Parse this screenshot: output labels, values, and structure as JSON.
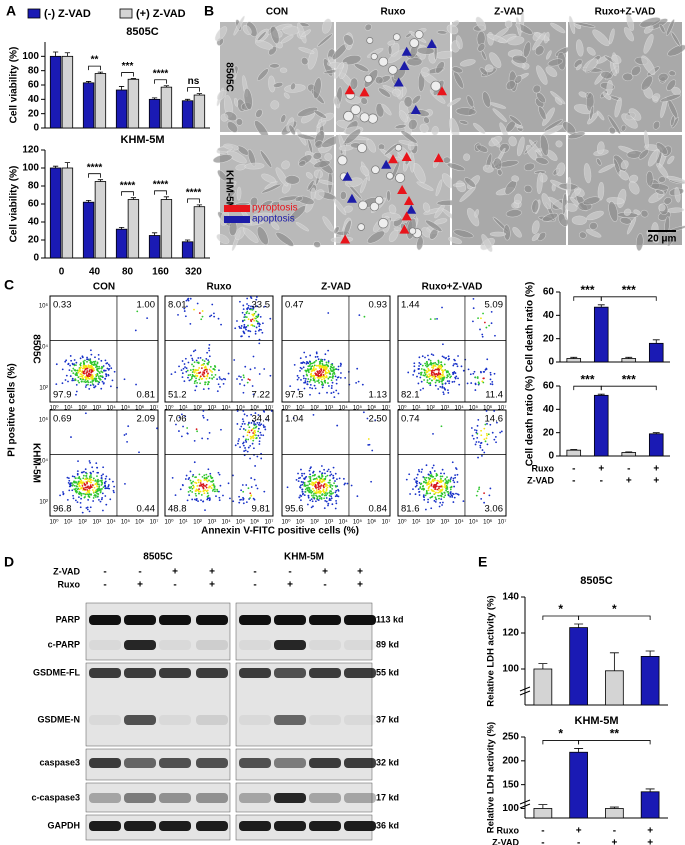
{
  "panel_labels": [
    "A",
    "B",
    "C",
    "D",
    "E"
  ],
  "chart_data": [
    {
      "type": "bar",
      "title": "8505C",
      "y_label": "Cell viability (%)",
      "categories": [
        null,
        null,
        null,
        null,
        null
      ],
      "series": [
        {
          "name": "(-) Z-VAD",
          "color": "#1a1ab4",
          "values": [
            100,
            63,
            53,
            40,
            38
          ],
          "errors": [
            6,
            2,
            5,
            2,
            2
          ]
        },
        {
          "name": "(+) Z-VAD",
          "color": "#d4d4d4",
          "values": [
            100,
            76,
            68,
            57,
            46
          ],
          "errors": [
            5,
            2,
            1,
            2,
            2
          ]
        }
      ],
      "significance": [
        null,
        "**",
        "***",
        "****",
        "ns"
      ],
      "ylim": [
        0,
        120
      ],
      "yticks": [
        0,
        20,
        40,
        60,
        80,
        100
      ],
      "legend": "top"
    },
    {
      "type": "bar",
      "title": "KHM-5M",
      "y_label": "Cell viability (%)",
      "categories": [
        "0",
        "40",
        "80",
        "160",
        "320"
      ],
      "series": [
        {
          "color": "#1a1ab4",
          "values": [
            100,
            62,
            32,
            25,
            18
          ],
          "errors": [
            2,
            2,
            2,
            3,
            2
          ]
        },
        {
          "color": "#d4d4d4",
          "values": [
            100,
            85,
            65,
            65,
            57
          ],
          "errors": [
            6,
            2,
            2,
            3,
            2
          ]
        }
      ],
      "significance": [
        null,
        "****",
        "****",
        "****",
        "****"
      ],
      "ylim": [
        0,
        120
      ],
      "yticks": [
        0,
        20,
        40,
        60,
        80,
        100,
        120
      ]
    },
    {
      "type": "bar",
      "y_label": "Cell death ratio (%)",
      "categories": [
        null,
        null,
        null,
        null
      ],
      "values": [
        3,
        47,
        3,
        16
      ],
      "errors": [
        1,
        2,
        1,
        3
      ],
      "colors": [
        "#d4d4d4",
        "#1a1ab4",
        "#d4d4d4",
        "#1a1ab4"
      ],
      "comparisons": [
        "***",
        "***"
      ],
      "ylim": [
        0,
        60
      ],
      "yticks": [
        0,
        20,
        40,
        60
      ]
    },
    {
      "type": "bar",
      "y_label": "Cell death ratio (%)",
      "categories": [
        null,
        null,
        null,
        null
      ],
      "values": [
        5,
        52,
        3,
        19
      ],
      "errors": [
        0.5,
        1,
        0.5,
        1
      ],
      "colors": [
        "#d4d4d4",
        "#1a1ab4",
        "#d4d4d4",
        "#1a1ab4"
      ],
      "comparisons": [
        "***",
        "***"
      ],
      "ylim": [
        0,
        60
      ],
      "yticks": [
        0,
        20,
        40,
        60
      ],
      "treatments": [
        {
          "label": "Ruxo",
          "signs": [
            "-",
            "+",
            "-",
            "+"
          ]
        },
        {
          "label": "Z-VAD",
          "signs": [
            "-",
            "-",
            "+",
            "+"
          ]
        }
      ]
    },
    {
      "type": "bar",
      "title": "8505C",
      "y_label": "Relative LDH activity (%)",
      "categories": [
        null,
        null,
        null,
        null
      ],
      "values": [
        100,
        123,
        99,
        107
      ],
      "errors": [
        3,
        2,
        10,
        3
      ],
      "colors": [
        "#d4d4d4",
        "#1a1ab4",
        "#d4d4d4",
        "#1a1ab4"
      ],
      "comparisons": [
        "*",
        "*"
      ],
      "ylim": [
        80,
        140
      ],
      "yticks": [
        100,
        120,
        140
      ],
      "axis_break": true
    },
    {
      "type": "bar",
      "title": "KHM-5M",
      "y_label": "Relative LDH activity (%)",
      "categories": [
        null,
        null,
        null,
        null
      ],
      "values": [
        100,
        218,
        100,
        135
      ],
      "errors": [
        8,
        8,
        3,
        6
      ],
      "colors": [
        "#d4d4d4",
        "#1a1ab4",
        "#d4d4d4",
        "#1a1ab4"
      ],
      "comparisons": [
        "*",
        "**"
      ],
      "ylim": [
        80,
        250
      ],
      "yticks": [
        100,
        150,
        200,
        250
      ],
      "axis_break": true,
      "treatments": [
        {
          "label": "Ruxo",
          "signs": [
            "-",
            "+",
            "-",
            "+"
          ]
        },
        {
          "label": "Z-VAD",
          "signs": [
            "-",
            "-",
            "+",
            "+"
          ]
        }
      ]
    }
  ],
  "microscopy": {
    "columns": [
      "CON",
      "Ruxo",
      "Z-VAD",
      "Ruxo+Z-VAD"
    ],
    "rows": [
      "8505C",
      "KHM-5M"
    ],
    "legend": [
      {
        "label": "pyroptosis",
        "color": "#e8141b"
      },
      {
        "label": "apoptosis",
        "color": "#1c1ca8"
      }
    ],
    "scale_bar": "20 μm"
  },
  "flow": {
    "columns": [
      "CON",
      "Ruxo",
      "Z-VAD",
      "Ruxo+Z-VAD"
    ],
    "rows": [
      "8505C",
      "KHM-5M"
    ],
    "x_label": "Annexin V-FITC positive cells (%)",
    "y_label": "PI positive cells (%)",
    "x_ticks": [
      "10⁰",
      "10¹",
      "10²",
      "10³",
      "10⁴",
      "10⁵",
      "10⁶",
      "10⁷"
    ],
    "y_ticks": [
      "10²",
      "10⁴",
      "10⁶"
    ],
    "quadrants": [
      [
        [
          "0.33",
          "1.00",
          "97.9",
          "0.81"
        ],
        [
          "8.01",
          "33.5",
          "51.2",
          "7.22"
        ],
        [
          "0.47",
          "0.93",
          "97.5",
          "1.13"
        ],
        [
          "1.44",
          "5.09",
          "82.1",
          "11.4"
        ]
      ],
      [
        [
          "0.69",
          "2.09",
          "96.8",
          "0.44"
        ],
        [
          "7.06",
          "34.4",
          "48.8",
          "9.81"
        ],
        [
          "1.04",
          "2.50",
          "95.6",
          "0.84"
        ],
        [
          "0.74",
          "14.6",
          "81.6",
          "3.06"
        ]
      ]
    ]
  },
  "western": {
    "cell_lines": [
      "8505C",
      "KHM-5M"
    ],
    "treatments": [
      {
        "label": "Z-VAD",
        "signs": [
          "-",
          "-",
          "+",
          "+"
        ]
      },
      {
        "label": "Ruxo",
        "signs": [
          "-",
          "+",
          "-",
          "+"
        ]
      }
    ],
    "bands": [
      {
        "label": "PARP",
        "size": "113 kd"
      },
      {
        "label": "c-PARP",
        "size": "89 kd"
      },
      {
        "label": "GSDME-FL",
        "size": "55 kd"
      },
      {
        "label": "GSDME-N",
        "size": "37 kd"
      },
      {
        "label": "caspase3",
        "size": "32 kd"
      },
      {
        "label": "c-caspase3",
        "size": "17 kd"
      },
      {
        "label": "GAPDH",
        "size": "36 kd"
      }
    ]
  }
}
